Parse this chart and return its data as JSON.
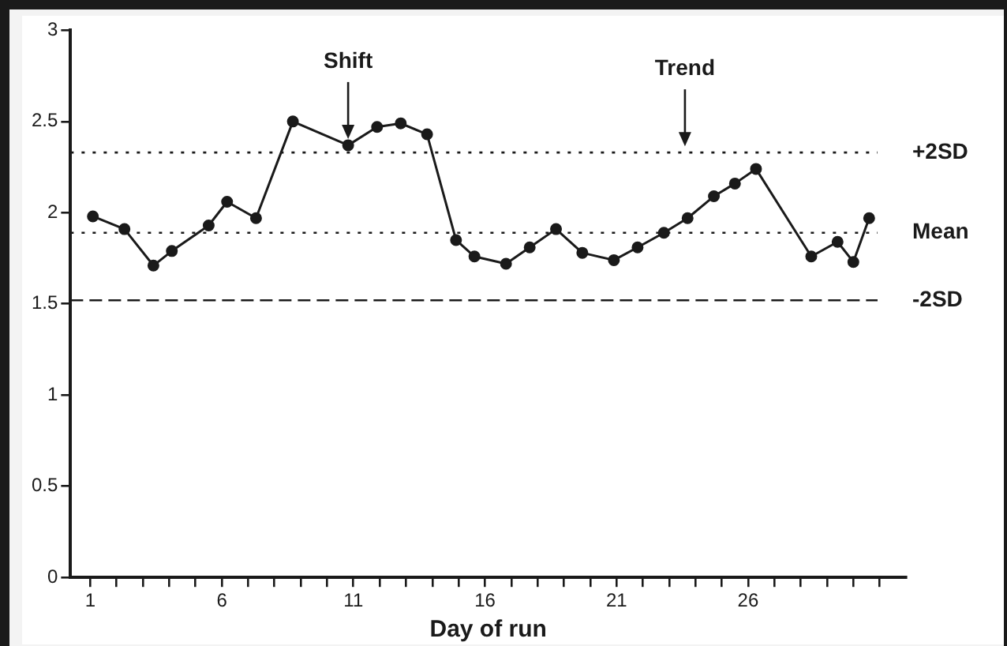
{
  "chart_data": {
    "type": "line",
    "xlabel": "Day of run",
    "xlim": [
      0.25,
      32
    ],
    "ylim": [
      0,
      3
    ],
    "xticks": [
      1,
      {
        "value": 2,
        "label": null
      },
      {
        "value": 3,
        "label": null
      },
      {
        "value": 4,
        "label": null
      },
      {
        "value": 5,
        "label": null
      },
      6,
      {
        "value": 7,
        "label": null
      },
      {
        "value": 8,
        "label": null
      },
      {
        "value": 9,
        "label": null
      },
      {
        "value": 10,
        "label": null
      },
      11,
      {
        "value": 12,
        "label": null
      },
      {
        "value": 13,
        "label": null
      },
      {
        "value": 14,
        "label": null
      },
      {
        "value": 15,
        "label": null
      },
      16,
      {
        "value": 17,
        "label": null
      },
      {
        "value": 18,
        "label": null
      },
      {
        "value": 19,
        "label": null
      },
      {
        "value": 20,
        "label": null
      },
      21,
      {
        "value": 22,
        "label": null
      },
      {
        "value": 23,
        "label": null
      },
      {
        "value": 24,
        "label": null
      },
      {
        "value": 25,
        "label": null
      },
      26,
      {
        "value": 27,
        "label": null
      },
      {
        "value": 28,
        "label": null
      },
      {
        "value": 29,
        "label": null
      },
      {
        "value": 30,
        "label": null
      },
      {
        "value": 31,
        "label": null
      }
    ],
    "yticks": [
      0,
      0.5,
      1,
      1.5,
      2,
      2.5,
      3
    ],
    "grid": false,
    "legend": false,
    "marker": "circle",
    "line_style": "solid",
    "series": [
      {
        "color": "#1a1a1a",
        "x": [
          1.1,
          2.3,
          3.4,
          4.1,
          5.5,
          6.2,
          7.3,
          8.7,
          10.8,
          11.9,
          12.8,
          13.8,
          14.9,
          15.6,
          16.8,
          17.7,
          18.7,
          19.7,
          20.9,
          21.8,
          22.8,
          23.7,
          24.7,
          25.5,
          26.3,
          28.4,
          29.4,
          30.0,
          30.6
        ],
        "values": [
          1.98,
          1.91,
          1.71,
          1.79,
          1.93,
          2.06,
          1.97,
          2.5,
          2.37,
          2.47,
          2.49,
          2.43,
          1.85,
          1.76,
          1.72,
          1.81,
          1.91,
          1.78,
          1.74,
          1.81,
          1.89,
          1.97,
          2.09,
          2.16,
          2.24,
          1.76,
          1.84,
          1.73,
          1.97
        ]
      }
    ],
    "ref_lines": [
      {
        "axis": "y",
        "value": 2.33,
        "label": "+2SD",
        "color": "#1a1a1a",
        "line_style": "dotted"
      },
      {
        "axis": "y",
        "value": 1.89,
        "label": "Mean",
        "color": "#1a1a1a",
        "line_style": "dotted"
      },
      {
        "axis": "y",
        "value": 1.52,
        "label": "-2SD",
        "color": "#1a1a1a",
        "line_style": "dashed"
      }
    ],
    "annotations": [
      {
        "text": "Shift",
        "x": 10.8,
        "y": 2.37
      },
      {
        "text": "Trend",
        "x": 23.6,
        "y": 2.33
      }
    ]
  }
}
